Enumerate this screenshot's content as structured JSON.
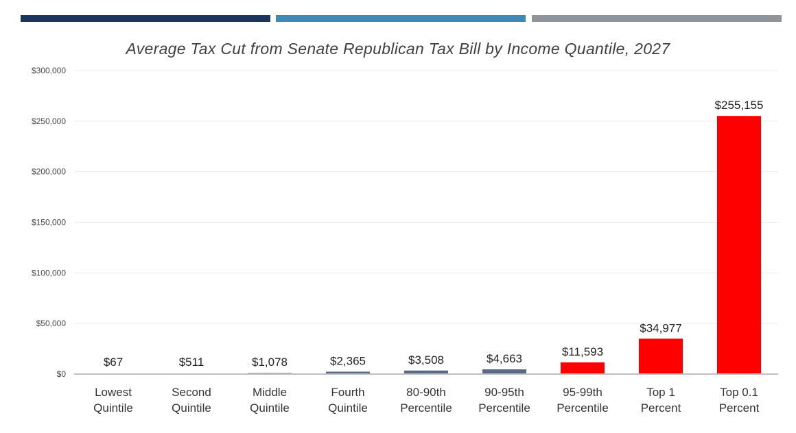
{
  "header_colors": [
    "#1b365d",
    "#3f8ab4",
    "#8e959b"
  ],
  "chart_data": {
    "type": "bar",
    "title": "Average Tax Cut from Senate Republican Tax Bill by Income Quantile, 2027",
    "xlabel": "",
    "ylabel": "",
    "ylim": [
      0,
      300000
    ],
    "yticks": [
      0,
      50000,
      100000,
      150000,
      200000,
      250000,
      300000
    ],
    "ytick_labels": [
      "$0",
      "$50,000",
      "$100,000",
      "$150,000",
      "$200,000",
      "$250,000",
      "$300,000"
    ],
    "grid": true,
    "legend": "none",
    "categories": [
      [
        "Lowest",
        "Quintile"
      ],
      [
        "Second",
        "Quintile"
      ],
      [
        "Middle",
        "Quintile"
      ],
      [
        "Fourth",
        "Quintile"
      ],
      [
        "80-90th",
        "Percentile"
      ],
      [
        "90-95th",
        "Percentile"
      ],
      [
        "95-99th",
        "Percentile"
      ],
      [
        "Top 1",
        "Percent"
      ],
      [
        "Top 0.1",
        "Percent"
      ]
    ],
    "values": [
      67,
      511,
      1078,
      2365,
      3508,
      4663,
      11593,
      34977,
      255155
    ],
    "data_labels": [
      "$67",
      "$511",
      "$1,078",
      "$2,365",
      "$3,508",
      "$4,663",
      "$11,593",
      "$34,977",
      "$255,155"
    ],
    "bar_colors": [
      "#5a6a85",
      "#5a6a85",
      "#5a6a85",
      "#5a6a85",
      "#5a6a85",
      "#5a6a85",
      "#ff0000",
      "#ff0000",
      "#ff0000"
    ],
    "gridline_color": "#ececec",
    "axis_color": "#bfbfbf"
  }
}
